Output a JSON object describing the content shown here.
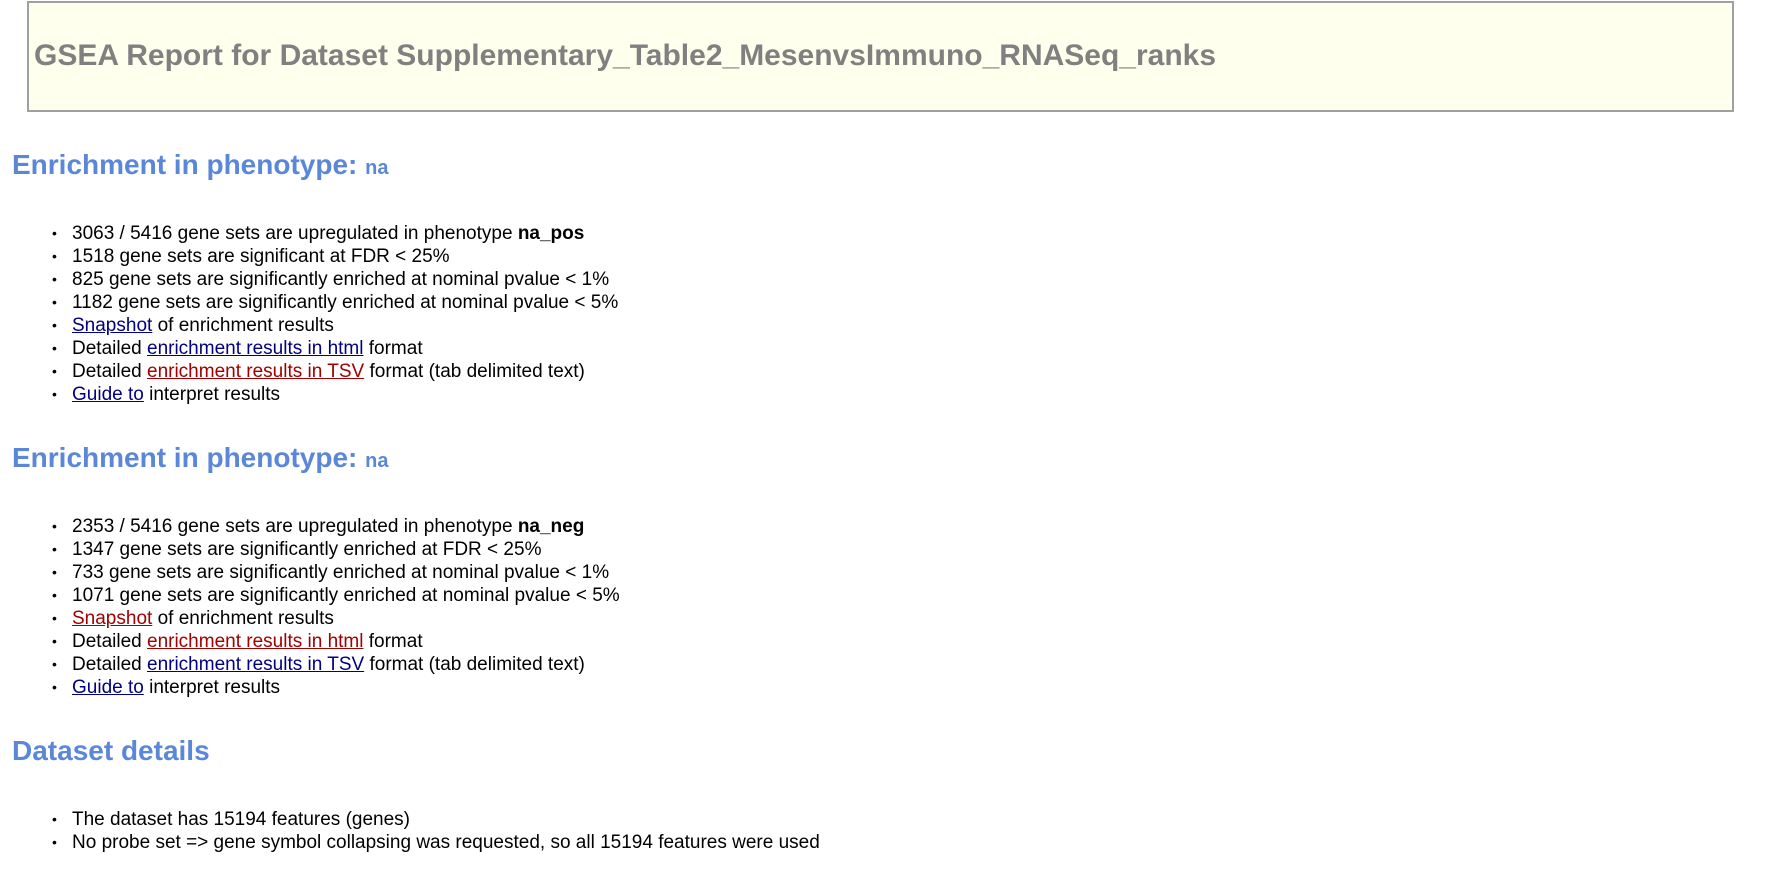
{
  "title": "GSEA Report for Dataset Supplementary_Table2_MesenvsImmuno_RNASeq_ranks",
  "sections": [
    {
      "heading": "Enrichment in phenotype:",
      "phenotype": "na",
      "upregulated_pre": "3063 / 5416 gene sets are upregulated in phenotype",
      "upregulated_label": "na_pos",
      "fdr": "1518 gene sets are significant at FDR < 25%",
      "pval1": "825 gene sets are significantly enriched at nominal pvalue < 1%",
      "pval5": "1182 gene sets are significantly enriched at nominal pvalue < 5%",
      "snapshot_link": "Snapshot",
      "snapshot_rest": "of enrichment results",
      "html_pre": "Detailed",
      "html_link": "enrichment results in html",
      "html_post": "format",
      "tsv_pre": "Detailed",
      "tsv_link": "enrichment results in TSV",
      "tsv_post": "format (tab delimited text)",
      "guide_link": "Guide to",
      "guide_rest": "interpret results"
    },
    {
      "heading": "Enrichment in phenotype:",
      "phenotype": "na",
      "upregulated_pre": "2353 / 5416 gene sets are upregulated in phenotype",
      "upregulated_label": "na_neg",
      "fdr": "1347 gene sets are significantly enriched at FDR < 25%",
      "pval1": "733 gene sets are significantly enriched at nominal pvalue < 1%",
      "pval5": "1071 gene sets are significantly enriched at nominal pvalue < 5%",
      "snapshot_link": "Snapshot",
      "snapshot_rest": "of enrichment results",
      "html_pre": "Detailed",
      "html_link": "enrichment results in html",
      "html_post": "format",
      "tsv_pre": "Detailed",
      "tsv_link": "enrichment results in TSV",
      "tsv_post": "format (tab delimited text)",
      "guide_link": "Guide to",
      "guide_rest": "interpret results"
    }
  ],
  "dataset": {
    "heading": "Dataset details",
    "features": "The dataset has 15194 features (genes)",
    "collapse": "No probe set => gene symbol collapsing was requested, so all 15194 features were used"
  },
  "bullet": "•",
  "colors": {
    "heading": "#5b87d8",
    "title": "#808080",
    "title_bg": "#ffffee",
    "link_visited_style": "#000080",
    "link_alt_style": "#a00000"
  }
}
